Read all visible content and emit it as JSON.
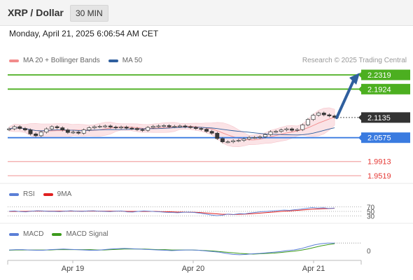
{
  "header": {
    "title": "XRP / Dollar",
    "timeframe": "30 MIN"
  },
  "datetime": "Monday, April 21, 2025 6:06:54 AM CET",
  "copyright": "Research © 2025 Trading Central",
  "legends": {
    "price": [
      {
        "label": "MA 20 + Bollinger Bands",
        "color": "#f28b8b"
      },
      {
        "label": "MA 50",
        "color": "#2f5f9e"
      }
    ],
    "rsi": [
      {
        "label": "RSI",
        "color": "#5b7fd6"
      },
      {
        "label": "9MA",
        "color": "#e02020"
      }
    ],
    "macd": [
      {
        "label": "MACD",
        "color": "#5b7fd6"
      },
      {
        "label": "MACD Signal",
        "color": "#3c9a1c"
      }
    ]
  },
  "colors": {
    "resistance": "#4caf20",
    "support_blue": "#3a7be0",
    "support_red": "#e53935",
    "current": "#333333",
    "arrow": "#2f5f9e",
    "bollinger_fill": "#fbe3e6"
  },
  "chart_data": {
    "type": "candlestick",
    "title": "XRP / Dollar",
    "timeframe": "30 MIN",
    "x_tick_labels": [
      "Apr 19",
      "Apr 20",
      "Apr 21"
    ],
    "price_levels": [
      {
        "value": 2.2319,
        "label": "2.2319",
        "kind": "resistance"
      },
      {
        "value": 2.1924,
        "label": "2.1924",
        "kind": "resistance"
      },
      {
        "value": 2.1135,
        "label": "2.1135",
        "kind": "current"
      },
      {
        "value": 2.0575,
        "label": "2.0575",
        "kind": "pivot"
      },
      {
        "value": 1.9913,
        "label": "1.9913",
        "kind": "support"
      },
      {
        "value": 1.9519,
        "label": "1.9519",
        "kind": "support"
      }
    ],
    "close_series": [
      2.082,
      2.088,
      2.083,
      2.079,
      2.068,
      2.063,
      2.073,
      2.082,
      2.088,
      2.085,
      2.079,
      2.072,
      2.073,
      2.07,
      2.079,
      2.085,
      2.088,
      2.089,
      2.09,
      2.087,
      2.085,
      2.087,
      2.084,
      2.083,
      2.08,
      2.078,
      2.086,
      2.089,
      2.09,
      2.091,
      2.088,
      2.089,
      2.09,
      2.088,
      2.086,
      2.083,
      2.081,
      2.075,
      2.07,
      2.055,
      2.046,
      2.046,
      2.049,
      2.05,
      2.054,
      2.058,
      2.058,
      2.06,
      2.066,
      2.074,
      2.075,
      2.079,
      2.082,
      2.078,
      2.08,
      2.093,
      2.108,
      2.12,
      2.126,
      2.121,
      2.118,
      2.114
    ],
    "projection": {
      "from": 2.113,
      "to": 2.2319,
      "style": "arrow-up"
    },
    "rsi": {
      "levels": [
        70,
        50,
        30
      ],
      "rsi_values": [
        51,
        52,
        49,
        48,
        51,
        53,
        52,
        50,
        50,
        49,
        51,
        53,
        51,
        50,
        52,
        53,
        51,
        50,
        49,
        51,
        52,
        48,
        47,
        50,
        52,
        51,
        49,
        48,
        46,
        45,
        44,
        46,
        47,
        45,
        42,
        38,
        34,
        31,
        33,
        38,
        36,
        40,
        39,
        43,
        46,
        49,
        50,
        52,
        54,
        56,
        55,
        58,
        60,
        64,
        67,
        65,
        66,
        63,
        65
      ],
      "ma_values": [
        50,
        50,
        50,
        50,
        51,
        51,
        51,
        51,
        51,
        51,
        51,
        51,
        51,
        51,
        51,
        51,
        51,
        51,
        51,
        51,
        51,
        50,
        50,
        50,
        50,
        50,
        50,
        49,
        49,
        48,
        47,
        47,
        46,
        46,
        45,
        43,
        41,
        39,
        37,
        37,
        36,
        37,
        38,
        39,
        41,
        43,
        45,
        47,
        49,
        51,
        52,
        54,
        56,
        58,
        60,
        61,
        62,
        63,
        64
      ]
    },
    "macd": {
      "zero_label": "0",
      "macd_values": [
        0.2,
        0.3,
        0.3,
        0.2,
        0.1,
        0.1,
        0.3,
        0.4,
        0.5,
        0.4,
        0.3,
        0.2,
        0.1,
        0.1,
        0.3,
        0.5,
        0.6,
        0.7,
        0.6,
        0.5,
        0.4,
        0.3,
        0.2,
        0.1,
        0.0,
        0.1,
        0.2,
        0.2,
        0.1,
        -0.1,
        -0.3,
        -0.5,
        -0.9,
        -1.2,
        -1.3,
        -1.2,
        -1.0,
        -0.9,
        -0.7,
        -0.5,
        -0.3,
        0.0,
        0.2,
        0.6,
        1.2,
        1.8,
        2.2,
        2.4,
        2.4
      ],
      "signal_values": [
        0.1,
        0.2,
        0.2,
        0.2,
        0.2,
        0.2,
        0.2,
        0.3,
        0.3,
        0.3,
        0.3,
        0.3,
        0.3,
        0.2,
        0.2,
        0.3,
        0.4,
        0.5,
        0.5,
        0.5,
        0.5,
        0.4,
        0.3,
        0.3,
        0.2,
        0.2,
        0.2,
        0.2,
        0.1,
        0.0,
        -0.1,
        -0.3,
        -0.5,
        -0.7,
        -0.9,
        -1.0,
        -1.1,
        -1.0,
        -0.9,
        -0.8,
        -0.6,
        -0.4,
        -0.2,
        0.1,
        0.5,
        1.0,
        1.5,
        1.9,
        2.2
      ]
    }
  }
}
